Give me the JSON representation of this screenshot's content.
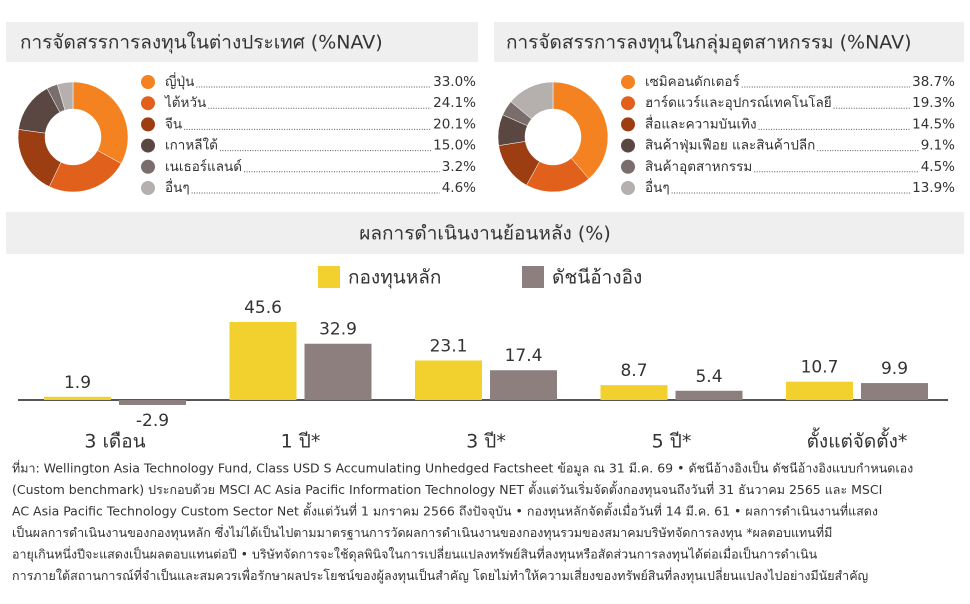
{
  "chart_data": [
    {
      "type": "pie",
      "title": "การจัดสรรการลงทุนในต่างประเทศ (%NAV)",
      "categories": [
        "ญี่ปุ่น",
        "ไต้หวัน",
        "จีน",
        "เกาหลีใต้",
        "เนเธอร์แลนด์",
        "อื่นๆ"
      ],
      "values": [
        33.0,
        24.1,
        20.1,
        15.0,
        3.2,
        4.6
      ],
      "value_labels": [
        "33.0%",
        "24.1%",
        "20.1%",
        "15.0%",
        "3.2%",
        "4.6%"
      ],
      "colors": [
        "#f58220",
        "#e0601c",
        "#9c3d12",
        "#5b4742",
        "#7a6e6c",
        "#b5b0ae"
      ]
    },
    {
      "type": "pie",
      "title": "การจัดสรรการลงทุนในกลุ่มอุตสาหกรรม (%NAV)",
      "categories": [
        "เซมิคอนดักเตอร์",
        "ฮาร์ดแวร์และอุปกรณ์เทคโนโลยี",
        "สื่อและความบันเทิง",
        "สินค้าฟุ่มเฟือย และสินค้าปลีก",
        "สินค้าอุตสาหกรรม",
        "อื่นๆ"
      ],
      "values": [
        38.7,
        19.3,
        14.5,
        9.1,
        4.5,
        13.9
      ],
      "value_labels": [
        "38.7%",
        "19.3%",
        "14.5%",
        "9.1%",
        "4.5%",
        "13.9%"
      ],
      "colors": [
        "#f58220",
        "#e0601c",
        "#9c3d12",
        "#5b4742",
        "#7a6e6c",
        "#b5b0ae"
      ]
    },
    {
      "type": "bar",
      "title": "ผลการดำเนินงานย้อนหลัง (%)",
      "categories": [
        "3 เดือน",
        "1 ปี*",
        "3 ปี*",
        "5 ปี*",
        "ตั้งแต่จัดตั้ง*"
      ],
      "series": [
        {
          "name": "กองทุนหลัก",
          "color": "#f2d12e",
          "values": [
            1.9,
            45.6,
            23.1,
            8.7,
            10.7
          ]
        },
        {
          "name": "ดัชนีอ้างอิง",
          "color": "#8c7f7e",
          "values": [
            -2.9,
            32.9,
            17.4,
            5.4,
            9.9
          ]
        }
      ]
    }
  ],
  "footnote": [
    "ที่มา: Wellington Asia Technology Fund, Class USD S Accumulating Unhedged Factsheet ข้อมูล ณ 31 มี.ค. 69 • ดัชนีอ้างอิงเป็น ดัชนีอ้างอิงแบบกำหนดเอง",
    "(Custom benchmark) ประกอบด้วย MSCI AC Asia Pacific Information Technology NET ตั้งแต่วันเริ่มจัดตั้งกองทุนจนถึงวันที่ 31 ธันวาคม 2565 และ MSCI",
    "AC Asia Pacific Technology Custom Sector Net ตั้งแต่วันที่ 1 มกราคม 2566 ถึงปัจจุบัน • กองทุนหลักจัดตั้งเมื่อวันที่ 14 มี.ค. 61 • ผลการดำเนินงานที่แสดง",
    "เป็นผลการดำเนินงานของกองทุนหลัก ซึ่งไม่ได้เป็นไปตามมาตรฐานการวัดผลการดำเนินงานของกองทุนรวมของสมาคมบริษัทจัดการลงทุน *ผลตอบแทนที่มี",
    "อายุเกินหนึ่งปีจะแสดงเป็นผลตอบแทนต่อปี • บริษัทจัดการจะใช้ดุลพินิจในการเปลี่ยนแปลงทรัพย์สินที่ลงทุนหรือสัดส่วนการลงทุนได้ต่อเมื่อเป็นการดำเนิน",
    "การภายใต้สถานการณ์ที่จำเป็นและสมควรเพื่อรักษาผลประโยชน์ของผู้ลงทุนเป็นสำคัญ โดยไม่ทำให้ความเสี่ยงของทรัพย์สินที่ลงทุนเปลี่ยนแปลงไปอย่างมีนัยสำคัญ"
  ]
}
